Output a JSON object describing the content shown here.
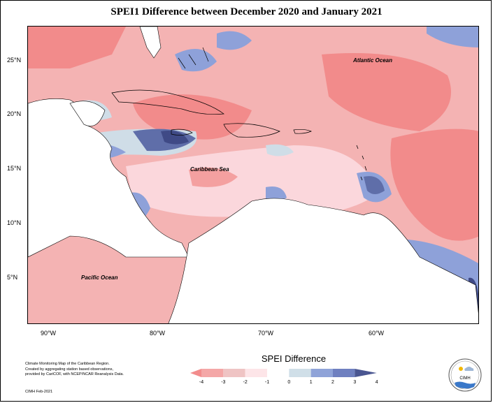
{
  "title": "SPEI1 Difference between December 2020 and January 2021",
  "y_axis_labels": [
    "25°N",
    "20°N",
    "15°N",
    "10°N",
    "5°N"
  ],
  "x_axis_labels": [
    "90°W",
    "80°W",
    "70°W",
    "60°W"
  ],
  "ocean_labels": {
    "atlantic": "Atlantic Ocean",
    "caribbean": "Caribbean Sea",
    "pacific": "Pacific Ocean"
  },
  "credit_lines": [
    "Climate Monitoring Map of the Caribbean Region.",
    "Created by aggregating station based observations,",
    "provided by CariCOF, with NCEP/NCAR Reanalysis Data."
  ],
  "date_note": "CIMH Feb-2021",
  "legend": {
    "title": "SPEI Difference",
    "ticks": [
      "-4",
      "-3",
      "-2",
      "-1",
      "0",
      "1",
      "2",
      "3",
      "4"
    ],
    "colors": [
      "#f28c8c",
      "#f4a7a7",
      "#efc4c4",
      "#fde5e8",
      "#ffffff",
      "#d0dfe8",
      "#8fa3d8",
      "#6f80c0",
      "#4a5691"
    ]
  },
  "logo": {
    "text": "CIMH",
    "icon": "cimh-logo-icon"
  },
  "colors": {
    "strong_dry": "#f28b8b",
    "dry": "#f4b3b3",
    "slight_dry": "#fbd7dc",
    "near_normal": "#fdecee",
    "slight_wet": "#cfdde7",
    "wet": "#8ea1d9",
    "very_wet": "#5f6ea9",
    "extreme_wet": "#3f4a86"
  }
}
